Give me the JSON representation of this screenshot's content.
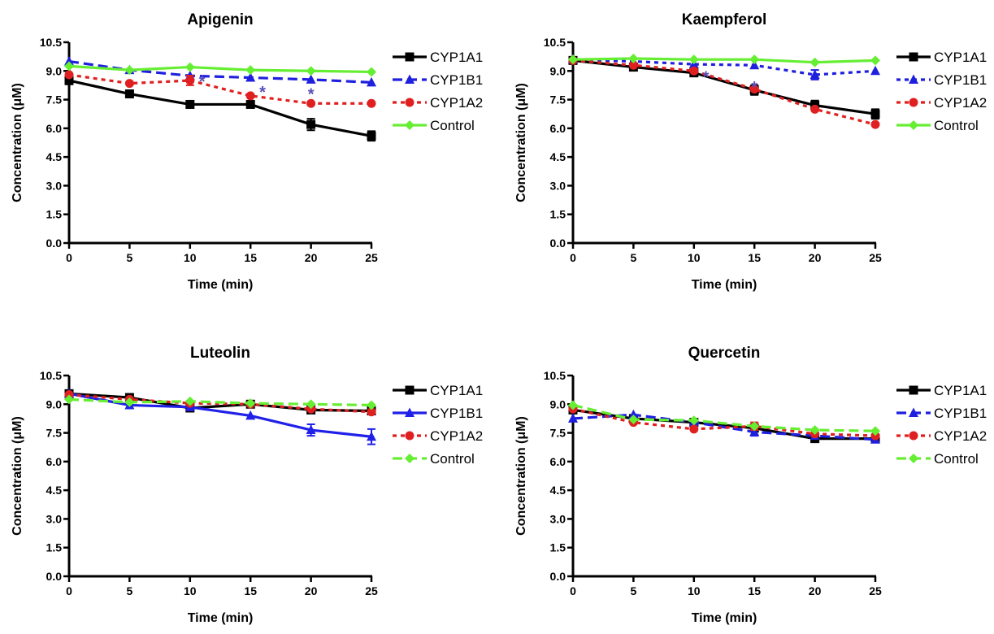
{
  "chart_data": [
    {
      "type": "line",
      "title": "Apigenin",
      "xlabel": "Time (min)",
      "ylabel": "Concentration (μM)",
      "x": [
        0,
        5,
        10,
        15,
        20,
        25
      ],
      "xticks": [
        "0",
        "5",
        "10",
        "15",
        "20",
        "25"
      ],
      "yticks": [
        "0.0",
        "1.5",
        "3.0",
        "4.5",
        "6.0",
        "7.5",
        "9.0",
        "10.5"
      ],
      "xlim": [
        0,
        25
      ],
      "ylim": [
        0,
        10.5
      ],
      "legend_position": "right",
      "grid": false,
      "series": [
        {
          "name": "CYP1A1",
          "values": [
            8.5,
            7.8,
            7.25,
            7.25,
            6.2,
            5.6
          ],
          "errors": [
            0.2,
            0.1,
            0.1,
            0.1,
            0.3,
            0.25
          ],
          "color": "#000000",
          "dash": "solid",
          "marker": "square"
        },
        {
          "name": "CYP1B1",
          "values": [
            9.5,
            9.05,
            8.75,
            8.65,
            8.55,
            8.4
          ],
          "errors": [
            0,
            0,
            0,
            0,
            0,
            0
          ],
          "color": "#1f1fe0",
          "dash": "dashed",
          "marker": "triangle"
        },
        {
          "name": "CYP1A2",
          "values": [
            8.8,
            8.35,
            8.5,
            7.7,
            7.3,
            7.3
          ],
          "errors": [
            0,
            0,
            0.25,
            0,
            0,
            0
          ],
          "color": "#e02020",
          "dash": "dotted",
          "marker": "circle"
        },
        {
          "name": "Control",
          "values": [
            9.25,
            9.05,
            9.2,
            9.05,
            9.0,
            8.95
          ],
          "errors": [
            0,
            0,
            0,
            0,
            0,
            0
          ],
          "color": "#66ee33",
          "dash": "solid",
          "marker": "diamond"
        }
      ],
      "annotations": [
        {
          "text": "*",
          "x": 11,
          "y": 8.75
        },
        {
          "text": "*",
          "x": 16,
          "y": 8.2
        },
        {
          "text": "*",
          "x": 20,
          "y": 8.1
        }
      ]
    },
    {
      "type": "line",
      "title": "Kaempferol",
      "xlabel": "Time (min)",
      "ylabel": "Concentration (μM)",
      "x": [
        0,
        5,
        10,
        15,
        20,
        25
      ],
      "xticks": [
        "0",
        "5",
        "10",
        "15",
        "20",
        "25"
      ],
      "yticks": [
        "0.0",
        "1.5",
        "3.0",
        "4.5",
        "6.0",
        "7.5",
        "9.0",
        "10.5"
      ],
      "xlim": [
        0,
        25
      ],
      "ylim": [
        0,
        10.5
      ],
      "legend_position": "right",
      "grid": false,
      "series": [
        {
          "name": "CYP1A1",
          "values": [
            9.55,
            9.2,
            8.9,
            8.0,
            7.2,
            6.75
          ],
          "errors": [
            0.1,
            0.15,
            0.15,
            0.25,
            0.25,
            0.25
          ],
          "color": "#000000",
          "dash": "solid",
          "marker": "square"
        },
        {
          "name": "CYP1B1",
          "values": [
            9.6,
            9.5,
            9.35,
            9.3,
            8.8,
            9.0
          ],
          "errors": [
            0,
            0,
            0,
            0,
            0.25,
            0
          ],
          "color": "#1f1fe0",
          "dash": "dotted",
          "marker": "triangle"
        },
        {
          "name": "CYP1A2",
          "values": [
            9.55,
            9.3,
            9.0,
            8.05,
            7.0,
            6.2
          ],
          "errors": [
            0,
            0,
            0,
            0,
            0,
            0
          ],
          "color": "#e02020",
          "dash": "dotted",
          "marker": "circle"
        },
        {
          "name": "Control",
          "values": [
            9.6,
            9.65,
            9.6,
            9.6,
            9.45,
            9.55
          ],
          "errors": [
            0,
            0,
            0,
            0,
            0,
            0
          ],
          "color": "#66ee33",
          "dash": "solid",
          "marker": "diamond"
        }
      ],
      "annotations": [
        {
          "text": "*",
          "x": 11,
          "y": 9.0
        },
        {
          "text": "*",
          "x": 15,
          "y": 8.45
        }
      ]
    },
    {
      "type": "line",
      "title": "Luteolin",
      "xlabel": "Time (min)",
      "ylabel": "Concentration (μM)",
      "x": [
        0,
        5,
        10,
        15,
        20,
        25
      ],
      "xticks": [
        "0",
        "5",
        "10",
        "15",
        "20",
        "25"
      ],
      "yticks": [
        "0.0",
        "1.5",
        "3.0",
        "4.5",
        "6.0",
        "7.5",
        "9.0",
        "10.5"
      ],
      "xlim": [
        0,
        25
      ],
      "ylim": [
        0,
        10.5
      ],
      "legend_position": "right",
      "grid": false,
      "series": [
        {
          "name": "CYP1A1",
          "values": [
            9.55,
            9.35,
            8.8,
            9.0,
            8.7,
            8.65
          ],
          "errors": [
            0.1,
            0.1,
            0.1,
            0.1,
            0.1,
            0.1
          ],
          "color": "#000000",
          "dash": "solid",
          "marker": "square"
        },
        {
          "name": "CYP1B1",
          "values": [
            9.55,
            8.95,
            8.85,
            8.4,
            7.65,
            7.3
          ],
          "errors": [
            0,
            0,
            0,
            0,
            0.3,
            0.4
          ],
          "color": "#2020e8",
          "dash": "solid",
          "marker": "triangle"
        },
        {
          "name": "CYP1A2",
          "values": [
            9.5,
            9.25,
            9.05,
            9.0,
            8.75,
            8.6
          ],
          "errors": [
            0,
            0,
            0,
            0,
            0,
            0
          ],
          "color": "#e02020",
          "dash": "dotted",
          "marker": "circle"
        },
        {
          "name": "Control",
          "values": [
            9.25,
            9.1,
            9.15,
            9.05,
            9.0,
            8.95
          ],
          "errors": [
            0,
            0,
            0,
            0,
            0,
            0
          ],
          "color": "#66ee33",
          "dash": "dashed",
          "marker": "diamond"
        }
      ],
      "annotations": []
    },
    {
      "type": "line",
      "title": "Quercetin",
      "xlabel": "Time (min)",
      "ylabel": "Concentration (μM)",
      "x": [
        0,
        5,
        10,
        15,
        20,
        25
      ],
      "xticks": [
        "0",
        "5",
        "10",
        "15",
        "20",
        "25"
      ],
      "yticks": [
        "0.0",
        "1.5",
        "3.0",
        "4.5",
        "6.0",
        "7.5",
        "9.0",
        "10.5"
      ],
      "xlim": [
        0,
        25
      ],
      "ylim": [
        0,
        10.5
      ],
      "legend_position": "right",
      "grid": false,
      "series": [
        {
          "name": "CYP1A1",
          "values": [
            8.7,
            8.25,
            8.05,
            7.75,
            7.2,
            7.2
          ],
          "errors": [
            0.1,
            0.1,
            0.1,
            0.1,
            0.1,
            0.1
          ],
          "color": "#000000",
          "dash": "solid",
          "marker": "square"
        },
        {
          "name": "CYP1B1",
          "values": [
            8.25,
            8.45,
            8.05,
            7.55,
            7.35,
            7.15
          ],
          "errors": [
            0,
            0,
            0,
            0.2,
            0,
            0
          ],
          "color": "#1f1fe0",
          "dash": "dashed",
          "marker": "triangle"
        },
        {
          "name": "CYP1A2",
          "values": [
            8.75,
            8.05,
            7.7,
            7.85,
            7.45,
            7.35
          ],
          "errors": [
            0,
            0,
            0,
            0.2,
            0,
            0
          ],
          "color": "#e02020",
          "dash": "dotted",
          "marker": "circle"
        },
        {
          "name": "Control",
          "values": [
            8.95,
            8.2,
            8.15,
            7.85,
            7.65,
            7.6
          ],
          "errors": [
            0,
            0,
            0,
            0,
            0,
            0
          ],
          "color": "#66ee33",
          "dash": "dashed",
          "marker": "diamond"
        }
      ],
      "annotations": []
    }
  ]
}
